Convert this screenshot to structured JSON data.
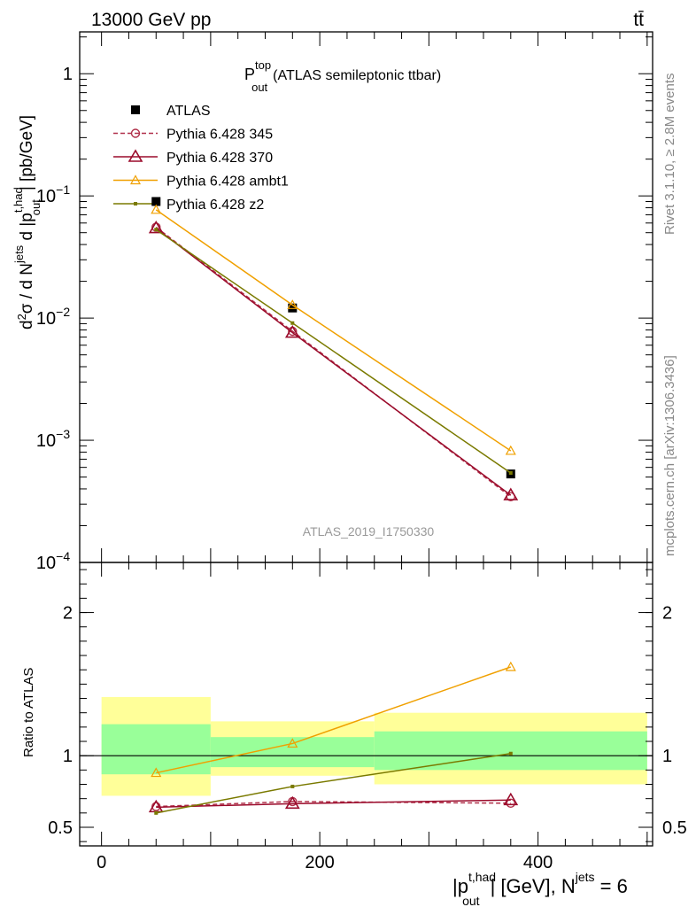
{
  "header": {
    "energy": "13000 GeV pp",
    "process": "tt̄"
  },
  "side_labels": {
    "rivet": "Rivet 3.1.10, ≥ 2.8M events",
    "mcplots": "mcplots.cern.ch [arXiv:1306.3436]"
  },
  "watermark": "ATLAS_2019_I1750330",
  "chart_data": [
    {
      "type": "scatter",
      "title_main": "P",
      "title_sup": "top",
      "title_sub": "out",
      "title_rest": "(ATLAS semileptonic ttbar)",
      "ylabel": "d²σ / d Nʲᵉᵗˢ d |pₒᵤₜᵗ,ʰᵃᵈ| [pb/GeV]",
      "yscale": "log",
      "ylim": [
        0.0001,
        2.2
      ],
      "xlim": [
        -20,
        505
      ],
      "yticks": [
        {
          "v": 1,
          "base": "1",
          "exp": ""
        },
        {
          "v": 0.1,
          "base": "10",
          "exp": "−1"
        },
        {
          "v": 0.01,
          "base": "10",
          "exp": "−2"
        },
        {
          "v": 0.001,
          "base": "10",
          "exp": "−3"
        },
        {
          "v": 0.0001,
          "base": "10",
          "exp": "−4"
        }
      ],
      "legend_position": "top-left",
      "series": [
        {
          "name": "ATLAS",
          "x": [
            50,
            175,
            375
          ],
          "y": [
            0.09,
            0.0121,
            0.00053
          ],
          "color": "#000000",
          "marker": "square"
        },
        {
          "name": "Pythia 6.428 345",
          "x": [
            50,
            175,
            375
          ],
          "y": [
            0.0555,
            0.0078,
            0.000345
          ],
          "color": "#b0304a",
          "marker": "circle",
          "dash": true
        },
        {
          "name": "Pythia 6.428 370",
          "x": [
            50,
            175,
            375
          ],
          "y": [
            0.0545,
            0.0076,
            0.000355
          ],
          "color": "#9b0c2c",
          "marker": "triangle"
        },
        {
          "name": "Pythia 6.428 ambt1",
          "x": [
            50,
            175,
            375
          ],
          "y": [
            0.077,
            0.0128,
            0.00082
          ],
          "color": "#f0a000",
          "marker": "triangle-open-small"
        },
        {
          "name": "Pythia 6.428 z2",
          "x": [
            50,
            175,
            375
          ],
          "y": [
            0.053,
            0.0091,
            0.00054
          ],
          "color": "#7a7a00",
          "marker": "dot"
        }
      ]
    },
    {
      "type": "line",
      "ylabel": "Ratio to ATLAS",
      "ylim": [
        0.37,
        2.35
      ],
      "xlim": [
        -20,
        505
      ],
      "xlabel_main": "|p",
      "xlabel_sup": "t,had",
      "xlabel_sub": "out",
      "xlabel_rest": "| [GeV], N",
      "xlabel_jets": "jets",
      "xlabel_end": " = 6",
      "xticks": [
        0,
        200,
        400
      ],
      "xtick_labels": [
        "0",
        "200",
        "400"
      ],
      "yticks": [
        0.5,
        1,
        2
      ],
      "ytick_labels": [
        "0.5",
        "1",
        "2"
      ],
      "bands": [
        {
          "x0": 0,
          "x1": 100,
          "yellow": [
            0.72,
            1.41
          ],
          "green": [
            0.87,
            1.22
          ]
        },
        {
          "x0": 100,
          "x1": 250,
          "yellow": [
            0.86,
            1.24
          ],
          "green": [
            0.92,
            1.13
          ]
        },
        {
          "x0": 250,
          "x1": 500,
          "yellow": [
            0.8,
            1.3
          ],
          "green": [
            0.9,
            1.17
          ]
        }
      ],
      "series": [
        {
          "name": "Pythia 6.428 345",
          "x": [
            50,
            175,
            375
          ],
          "y": [
            0.645,
            0.68,
            0.668
          ],
          "color": "#b0304a",
          "marker": "circle",
          "dash": true
        },
        {
          "name": "Pythia 6.428 370",
          "x": [
            50,
            175,
            375
          ],
          "y": [
            0.64,
            0.665,
            0.69
          ],
          "color": "#9b0c2c",
          "marker": "triangle"
        },
        {
          "name": "Pythia 6.428 ambt1",
          "x": [
            50,
            175,
            375
          ],
          "y": [
            0.88,
            1.085,
            1.62
          ],
          "color": "#f0a000",
          "marker": "triangle-open-small"
        },
        {
          "name": "Pythia 6.428 z2",
          "x": [
            50,
            175,
            375
          ],
          "y": [
            0.6,
            0.785,
            1.015
          ],
          "color": "#7a7a00",
          "marker": "dot"
        }
      ]
    }
  ]
}
